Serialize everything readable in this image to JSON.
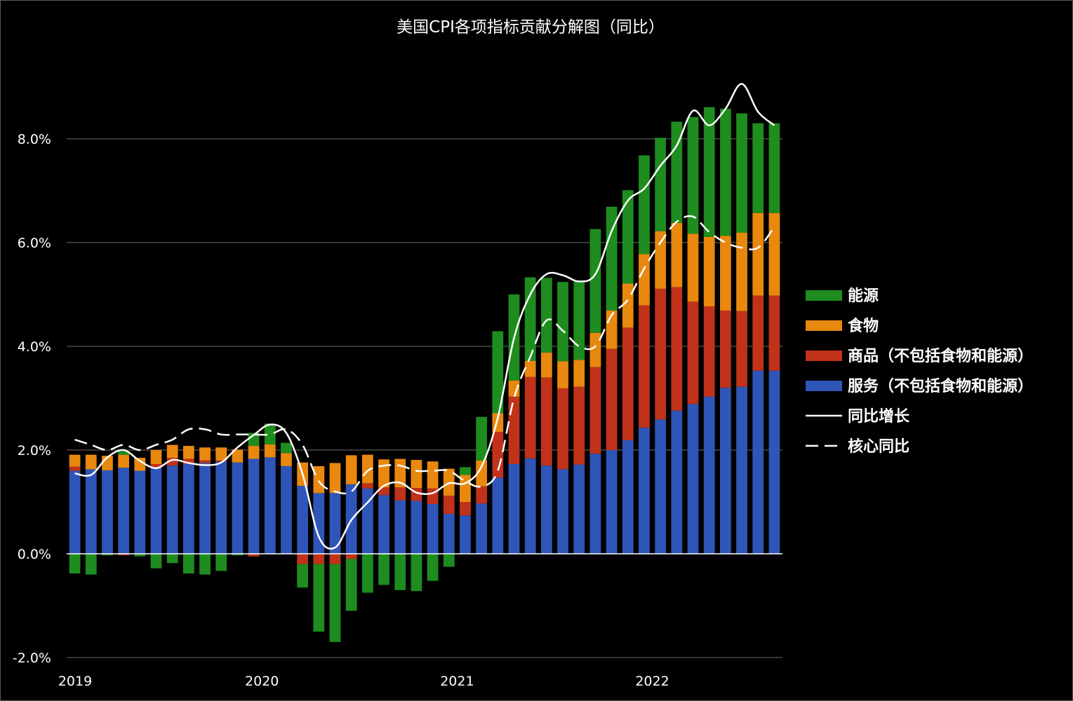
{
  "chart_data": {
    "type": "bar",
    "title": "美国CPI各项指标贡献分解图（同比）",
    "stacked": true,
    "ylim": [
      -2.0,
      10.0
    ],
    "y_ticks": [
      -2.0,
      0.0,
      2.0,
      4.0,
      6.0,
      8.0
    ],
    "y_tick_labels": [
      "-2.0%",
      "0.0%",
      "2.0%",
      "4.0%",
      "6.0%",
      "8.0%"
    ],
    "x_tick_labels": [
      "2019",
      "2020",
      "2021",
      "2022"
    ],
    "grid": true,
    "legend_position": "right",
    "categories": [
      "2019-01",
      "2019-02",
      "2019-03",
      "2019-04",
      "2019-05",
      "2019-06",
      "2019-07",
      "2019-08",
      "2019-09",
      "2019-10",
      "2019-11",
      "2019-12",
      "2020-01",
      "2020-02",
      "2020-03",
      "2020-04",
      "2020-05",
      "2020-06",
      "2020-07",
      "2020-08",
      "2020-09",
      "2020-10",
      "2020-11",
      "2020-12",
      "2021-01",
      "2021-02",
      "2021-03",
      "2021-04",
      "2021-05",
      "2021-06",
      "2021-07",
      "2021-08",
      "2021-09",
      "2021-10",
      "2021-11",
      "2021-12",
      "2022-01",
      "2022-02",
      "2022-03",
      "2022-04",
      "2022-05",
      "2022-06",
      "2022-07",
      "2022-08"
    ],
    "series": [
      {
        "name": "服务（不包括食物和能源）",
        "kind": "bar",
        "color": "#2f55b8",
        "values": [
          1.6,
          1.63,
          1.61,
          1.66,
          1.6,
          1.65,
          1.7,
          1.73,
          1.75,
          1.78,
          1.76,
          1.83,
          1.86,
          1.69,
          1.31,
          1.17,
          1.17,
          1.34,
          1.26,
          1.13,
          1.03,
          1.02,
          0.96,
          0.77,
          0.74,
          0.97,
          1.47,
          1.73,
          1.84,
          1.7,
          1.63,
          1.72,
          1.93,
          2.0,
          2.19,
          2.43,
          2.59,
          2.76,
          2.89,
          3.03,
          3.2,
          3.22,
          3.53,
          3.53
        ]
      },
      {
        "name": "商品（不包括食物和能源）",
        "kind": "bar",
        "color": "#c0321a",
        "values": [
          0.08,
          0.0,
          0.0,
          -0.03,
          0.0,
          0.08,
          0.15,
          0.1,
          0.05,
          0.02,
          0.0,
          -0.05,
          0.0,
          0.0,
          -0.2,
          -0.2,
          -0.2,
          -0.1,
          0.1,
          0.15,
          0.25,
          0.25,
          0.3,
          0.35,
          0.26,
          0.33,
          0.88,
          1.3,
          1.57,
          1.7,
          1.56,
          1.5,
          1.67,
          1.95,
          2.17,
          2.36,
          2.52,
          2.38,
          1.97,
          1.74,
          1.49,
          1.46,
          1.45,
          1.45
        ]
      },
      {
        "name": "食物",
        "kind": "bar",
        "color": "#e8880f",
        "values": [
          0.23,
          0.28,
          0.28,
          0.25,
          0.25,
          0.27,
          0.25,
          0.25,
          0.25,
          0.25,
          0.25,
          0.25,
          0.25,
          0.25,
          0.45,
          0.52,
          0.58,
          0.56,
          0.55,
          0.54,
          0.55,
          0.54,
          0.52,
          0.52,
          0.52,
          0.5,
          0.36,
          0.31,
          0.31,
          0.48,
          0.52,
          0.52,
          0.66,
          0.74,
          0.85,
          0.99,
          1.11,
          1.24,
          1.31,
          1.34,
          1.44,
          1.51,
          1.59,
          1.59
        ]
      },
      {
        "name": "能源",
        "kind": "bar",
        "color": "#1e8c1e",
        "values": [
          -0.38,
          -0.4,
          -0.03,
          0.07,
          -0.05,
          -0.28,
          -0.18,
          -0.38,
          -0.4,
          -0.33,
          -0.03,
          0.25,
          0.4,
          0.2,
          -0.45,
          -1.3,
          -1.5,
          -1.0,
          -0.75,
          -0.6,
          -0.7,
          -0.72,
          -0.52,
          -0.25,
          0.15,
          0.84,
          1.58,
          1.66,
          1.61,
          1.44,
          1.53,
          1.53,
          2.0,
          2.0,
          1.8,
          1.9,
          1.8,
          1.95,
          2.25,
          2.5,
          2.45,
          2.3,
          1.73,
          1.73
        ]
      },
      {
        "name": "同比增长",
        "kind": "line",
        "dash": "solid",
        "color": "#ffffff",
        "values": [
          1.55,
          1.52,
          1.86,
          2.0,
          1.79,
          1.65,
          1.81,
          1.75,
          1.71,
          1.76,
          2.05,
          2.29,
          2.49,
          2.33,
          1.54,
          0.33,
          0.12,
          0.65,
          0.99,
          1.31,
          1.37,
          1.18,
          1.17,
          1.36,
          1.36,
          1.68,
          2.62,
          4.16,
          5.0,
          5.39,
          5.37,
          5.25,
          5.39,
          6.22,
          6.81,
          7.04,
          7.48,
          7.87,
          8.54,
          8.26,
          8.58,
          9.06,
          8.52,
          8.26
        ]
      },
      {
        "name": "核心同比",
        "kind": "line",
        "dash": "dashed",
        "color": "#ffffff",
        "values": [
          2.2,
          2.1,
          2.0,
          2.1,
          2.0,
          2.1,
          2.2,
          2.4,
          2.4,
          2.3,
          2.3,
          2.3,
          2.3,
          2.4,
          2.1,
          1.4,
          1.2,
          1.2,
          1.6,
          1.7,
          1.7,
          1.6,
          1.6,
          1.6,
          1.4,
          1.3,
          1.6,
          3.0,
          3.8,
          4.5,
          4.3,
          4.0,
          4.0,
          4.6,
          4.9,
          5.5,
          6.0,
          6.4,
          6.5,
          6.2,
          6.0,
          5.9,
          5.9,
          6.3
        ]
      }
    ]
  }
}
